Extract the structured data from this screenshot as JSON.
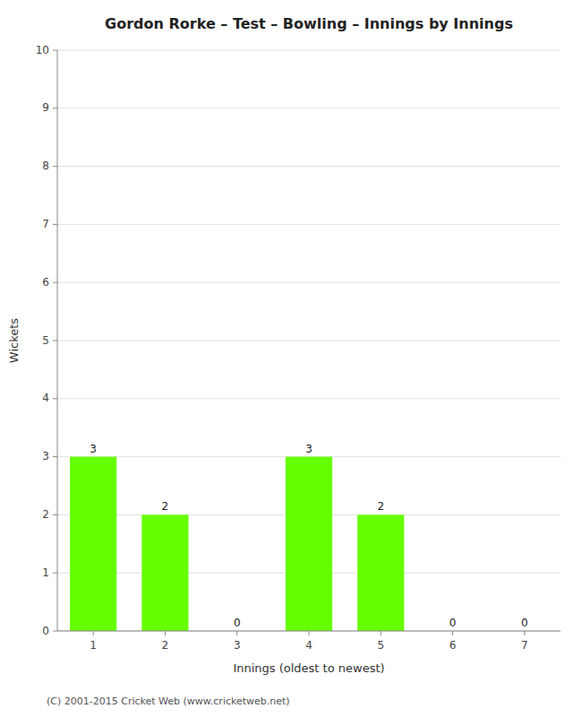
{
  "chart_data": {
    "type": "bar",
    "title": "Gordon Rorke – Test – Bowling – Innings by Innings",
    "x_label": "Innings (oldest to newest)",
    "y_label": "Wickets",
    "categories": [
      "1",
      "2",
      "3",
      "4",
      "5",
      "6",
      "7"
    ],
    "values": [
      3,
      2,
      0,
      3,
      2,
      0,
      0
    ],
    "color": "#66ff00",
    "ylim": [
      0,
      10
    ],
    "yticks": [
      0,
      1,
      2,
      3,
      4,
      5,
      6,
      7,
      8,
      9,
      10
    ],
    "grid": true,
    "data_labels": true,
    "annotations": [
      "(C) 2001-2015 Cricket Web (www.cricketweb.net)"
    ]
  }
}
